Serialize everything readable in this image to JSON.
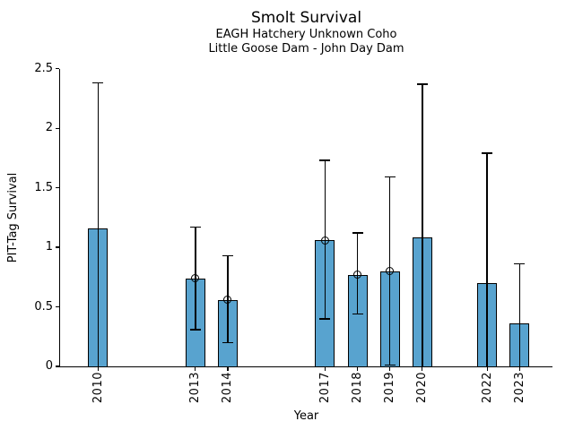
{
  "chart_data": {
    "type": "bar",
    "title": "Smolt Survival",
    "subtitle_lines": [
      "EAGH Hatchery Unknown Coho",
      "Little Goose Dam - John Day Dam"
    ],
    "xlabel": "Year",
    "ylabel": "PIT-Tag Survival",
    "ylim": [
      0,
      2.5
    ],
    "yticks": [
      0,
      0.5,
      1,
      1.5,
      2,
      2.5
    ],
    "ytick_labels": [
      "0",
      "0.5",
      "1",
      "1.5",
      "2",
      "2.5"
    ],
    "legend": "none",
    "grid": "off",
    "bar_color": "#58A3CF",
    "edge_color": "#000000",
    "points": [
      {
        "year": 2010,
        "value": 1.16,
        "err_hi": 2.38,
        "err_lo": 0.0,
        "lo_cap": false,
        "marker": false
      },
      {
        "year": 2013,
        "value": 0.74,
        "err_hi": 1.17,
        "err_lo": 0.31,
        "lo_cap": true,
        "marker": true
      },
      {
        "year": 2014,
        "value": 0.56,
        "err_hi": 0.93,
        "err_lo": 0.2,
        "lo_cap": true,
        "marker": true
      },
      {
        "year": 2017,
        "value": 1.06,
        "err_hi": 1.73,
        "err_lo": 0.4,
        "lo_cap": true,
        "marker": true
      },
      {
        "year": 2018,
        "value": 0.77,
        "err_hi": 1.12,
        "err_lo": 0.44,
        "lo_cap": true,
        "marker": true
      },
      {
        "year": 2019,
        "value": 0.8,
        "err_hi": 1.59,
        "err_lo": 0.01,
        "lo_cap": true,
        "marker": true
      },
      {
        "year": 2020,
        "value": 1.08,
        "err_hi": 2.37,
        "err_lo": 0.0,
        "lo_cap": false,
        "marker": false
      },
      {
        "year": 2022,
        "value": 0.7,
        "err_hi": 1.79,
        "err_lo": 0.0,
        "lo_cap": false,
        "marker": false
      },
      {
        "year": 2023,
        "value": 0.36,
        "err_hi": 0.86,
        "err_lo": 0.0,
        "lo_cap": false,
        "marker": false
      }
    ]
  }
}
